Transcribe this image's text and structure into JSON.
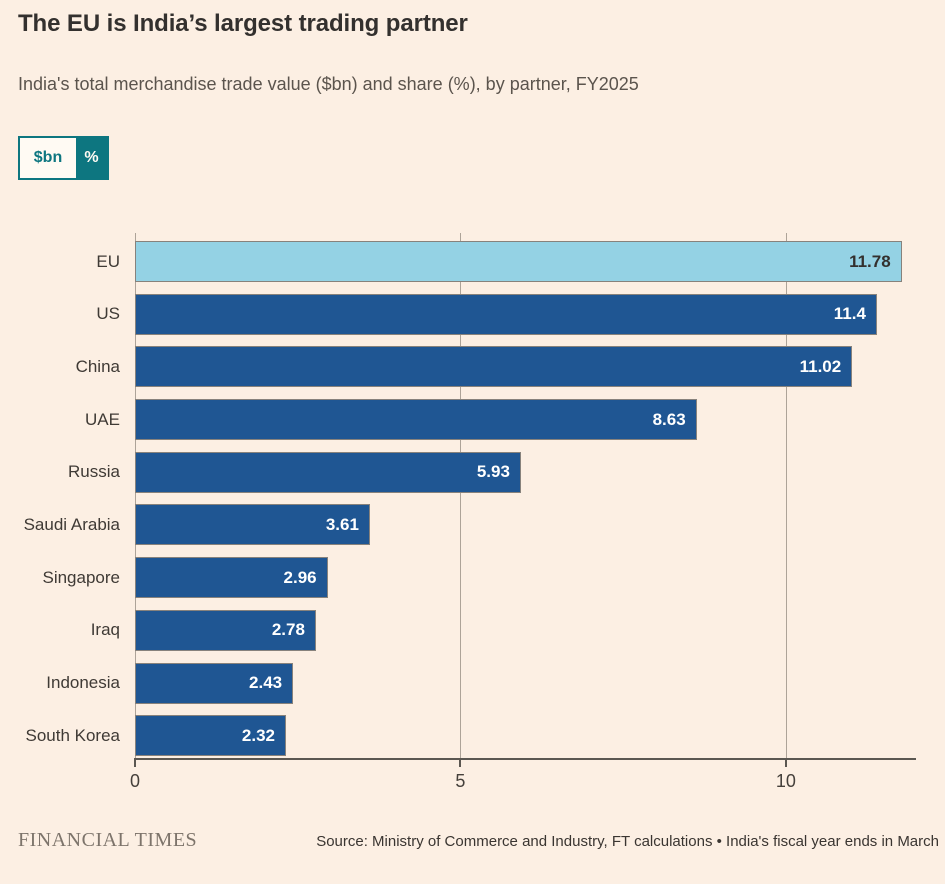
{
  "header": {
    "title": "The EU is India’s largest trading partner",
    "subtitle": "India's total merchandise trade value ($bn) and share (%), by partner, FY2025"
  },
  "toggle": {
    "options": [
      {
        "label": "$bn",
        "selected": false
      },
      {
        "label": "%",
        "selected": true
      }
    ]
  },
  "chart_data": {
    "type": "bar",
    "orientation": "horizontal",
    "title": "The EU is India’s largest trading partner",
    "subtitle": "India's total merchandise trade value ($bn) and share (%), by partner, FY2025",
    "unit": "%",
    "categories": [
      "EU",
      "US",
      "China",
      "UAE",
      "Russia",
      "Saudi Arabia",
      "Singapore",
      "Iraq",
      "Indonesia",
      "South Korea"
    ],
    "values": [
      11.78,
      11.4,
      11.02,
      8.63,
      5.93,
      3.61,
      2.96,
      2.78,
      2.43,
      2.32
    ],
    "value_labels": [
      "11.78",
      "11.4",
      "11.02",
      "8.63",
      "5.93",
      "3.61",
      "2.96",
      "2.78",
      "2.43",
      "2.32"
    ],
    "highlight_index": 0,
    "xlim": [
      0,
      12
    ],
    "xticks": [
      0,
      5,
      10
    ],
    "xtick_labels": [
      "0",
      "5",
      "10"
    ],
    "grid": "vertical",
    "legend": "none"
  },
  "colors": {
    "background": "#FCEFE3",
    "accent": "#0D7680",
    "bar_blue": "#1F5693",
    "bar_highlight": "#94D2E4",
    "text_dark": "#33302E",
    "value_on_dark": "#FFFFFF"
  },
  "footer": {
    "logo": "FINANCIAL TIMES",
    "source": "Source: Ministry of Commerce and Industry, FT calculations • India's fiscal year ends in March"
  }
}
